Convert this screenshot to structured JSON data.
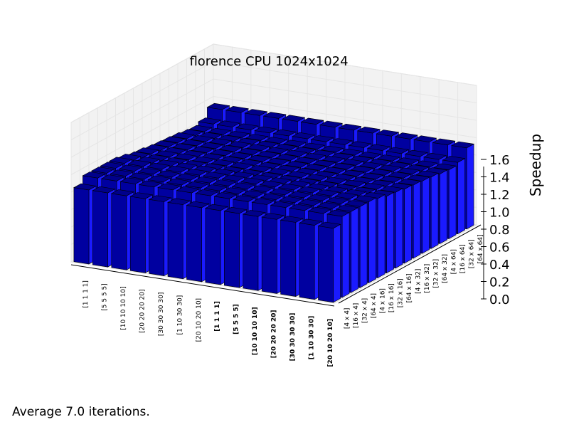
{
  "chart_data": {
    "type": "bar3d",
    "title": "florence CPU 1024x1024",
    "zlabel": "Speedup",
    "zlim": [
      0,
      1.6
    ],
    "zticks": [
      "0.0",
      "0.2",
      "0.4",
      "0.6",
      "0.8",
      "1.0",
      "1.2",
      "1.4",
      "1.6"
    ],
    "x_categories": [
      "[1 1 1 1]",
      "[5 5 5 5]",
      "[10 10 10 10]",
      "[20 20 20 20]",
      "[30 30 30 30]",
      "[1 10 30 30]",
      "[20 10 20 10]",
      "[1 1 1 1]",
      "[5 5 5 5]",
      "[10 10 10 10]",
      "[20 20 20 20]",
      "[30 30 30 30]",
      "[1 10 30 30]",
      "[20 10 20 10]"
    ],
    "x_bold_from_index": 7,
    "y_categories": [
      "[4 x 4]",
      "[16 x 4]",
      "[32 x 4]",
      "[64 x 4]",
      "[4 x 16]",
      "[16 x 16]",
      "[32 x 16]",
      "[64 x 16]",
      "[4 x 32]",
      "[16 x 32]",
      "[32 x 32]",
      "[64 x 32]",
      "[4 x 64]",
      "[16 x 64]",
      "[32 x 64]",
      "[64 x 64]"
    ],
    "values": [
      [
        0.85,
        0.93,
        0.93,
        0.93,
        0.93,
        0.91,
        0.88,
        0.87,
        0.85,
        0.84,
        0.83,
        0.82,
        0.8,
        0.79,
        0.82,
        0.93
      ],
      [
        0.85,
        0.93,
        0.93,
        0.93,
        0.93,
        0.91,
        0.88,
        0.87,
        0.85,
        0.84,
        0.83,
        0.82,
        0.8,
        0.79,
        0.82,
        0.93
      ],
      [
        0.85,
        0.93,
        0.93,
        0.93,
        0.93,
        0.91,
        0.88,
        0.87,
        0.85,
        0.84,
        0.83,
        0.82,
        0.8,
        0.79,
        0.82,
        0.93
      ],
      [
        0.85,
        0.93,
        0.93,
        0.93,
        0.93,
        0.91,
        0.88,
        0.87,
        0.85,
        0.84,
        0.83,
        0.82,
        0.8,
        0.79,
        0.82,
        0.93
      ],
      [
        0.85,
        0.93,
        0.93,
        0.93,
        0.93,
        0.91,
        0.88,
        0.87,
        0.85,
        0.84,
        0.83,
        0.82,
        0.8,
        0.79,
        0.82,
        0.93
      ],
      [
        0.85,
        0.93,
        0.93,
        0.93,
        0.93,
        0.91,
        0.88,
        0.87,
        0.85,
        0.84,
        0.83,
        0.82,
        0.8,
        0.79,
        0.82,
        0.93
      ],
      [
        0.85,
        0.93,
        0.93,
        0.93,
        0.93,
        0.91,
        0.88,
        0.87,
        0.85,
        0.84,
        0.83,
        0.82,
        0.8,
        0.79,
        0.82,
        0.93
      ],
      [
        0.85,
        0.93,
        0.93,
        0.93,
        0.93,
        0.91,
        0.88,
        0.87,
        0.85,
        0.84,
        0.83,
        0.82,
        0.8,
        0.79,
        0.82,
        0.93
      ],
      [
        0.85,
        0.93,
        0.93,
        0.93,
        0.93,
        0.91,
        0.88,
        0.87,
        0.85,
        0.84,
        0.83,
        0.82,
        0.8,
        0.79,
        0.82,
        0.93
      ],
      [
        0.85,
        0.93,
        0.93,
        0.93,
        0.93,
        0.91,
        0.88,
        0.87,
        0.85,
        0.84,
        0.83,
        0.82,
        0.8,
        0.79,
        0.82,
        0.93
      ],
      [
        0.85,
        0.93,
        0.93,
        0.93,
        0.93,
        0.91,
        0.88,
        0.87,
        0.85,
        0.84,
        0.83,
        0.82,
        0.8,
        0.79,
        0.82,
        0.93
      ],
      [
        0.85,
        0.93,
        0.93,
        0.93,
        0.93,
        0.91,
        0.88,
        0.87,
        0.85,
        0.84,
        0.83,
        0.82,
        0.8,
        0.79,
        0.82,
        0.93
      ],
      [
        0.85,
        0.93,
        0.93,
        0.93,
        0.93,
        0.91,
        0.88,
        0.87,
        0.85,
        0.84,
        0.83,
        0.82,
        0.8,
        0.79,
        0.82,
        0.93
      ],
      [
        0.85,
        0.93,
        0.93,
        0.93,
        0.93,
        0.91,
        0.88,
        0.87,
        0.85,
        0.84,
        0.83,
        0.82,
        0.8,
        0.79,
        0.82,
        0.93
      ]
    ],
    "colors": {
      "top": "#00008b",
      "front": "#0000a0",
      "side": "#1a1aff",
      "edge": "#000000",
      "pane": "#f2f2f2",
      "grid": "#e5e5e5"
    }
  },
  "footer": {
    "text": "Average 7.0 iterations."
  }
}
